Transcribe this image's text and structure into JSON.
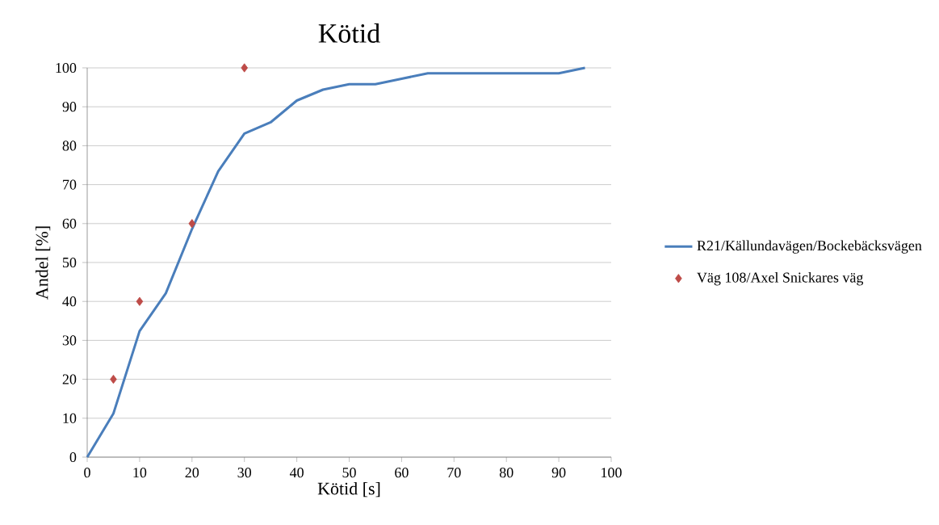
{
  "chart_data": {
    "type": "line",
    "title": "Kötid",
    "xlabel": "Kötid [s]",
    "ylabel": "Andel [%]",
    "xlim": [
      0,
      100
    ],
    "ylim": [
      0,
      100
    ],
    "xticks": [
      0,
      10,
      20,
      30,
      40,
      50,
      60,
      70,
      80,
      90,
      100
    ],
    "yticks": [
      0,
      10,
      20,
      30,
      40,
      50,
      60,
      70,
      80,
      90,
      100
    ],
    "grid": "y",
    "legend": "right",
    "series": [
      {
        "name": "R21/Källundavägen/Bockebäcksvägen",
        "color": "#4a7ebb",
        "marker": "none",
        "x": [
          0,
          5,
          10,
          15,
          20,
          25,
          30,
          35,
          40,
          45,
          50,
          55,
          60,
          65,
          70,
          75,
          80,
          85,
          90,
          95
        ],
        "values": [
          0,
          11.2,
          32.4,
          42.1,
          58.6,
          73.4,
          83.1,
          86.0,
          91.6,
          94.4,
          95.8,
          95.8,
          97.2,
          98.6,
          98.6,
          98.6,
          98.6,
          98.6,
          98.6,
          100
        ]
      },
      {
        "name": "Väg 108/Axel Snickares väg",
        "type": "scatter",
        "color": "#be4b48",
        "marker": "diamond",
        "x": [
          5,
          10,
          20,
          30
        ],
        "values": [
          20,
          40,
          60,
          100
        ]
      }
    ]
  }
}
